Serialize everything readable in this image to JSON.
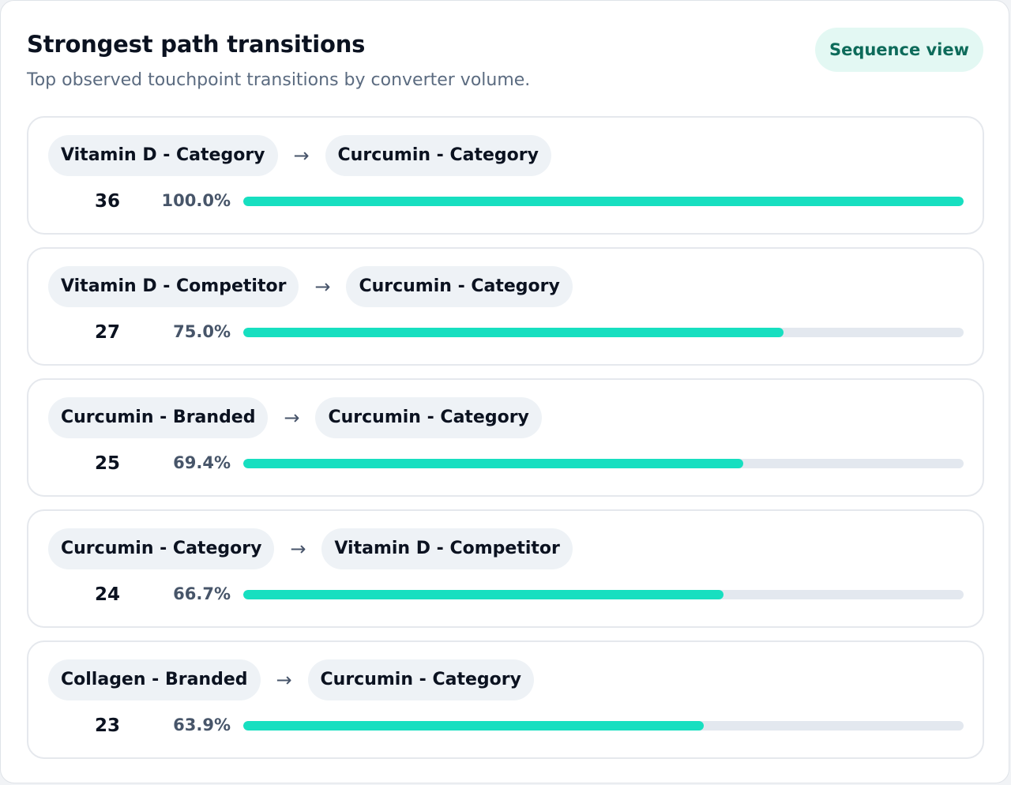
{
  "header": {
    "title": "Strongest path transitions",
    "subtitle": "Top observed touchpoint transitions by converter volume.",
    "sequence_view_label": "Sequence view"
  },
  "arrow_glyph": "→",
  "colors": {
    "accent": "#17dfc0",
    "track": "#e3e8ef",
    "chip_bg": "#eef2f6",
    "button_bg": "#e3f8f3",
    "button_text": "#0d6b5a"
  },
  "transitions": [
    {
      "from": "Vitamin D - Category",
      "to": "Curcumin - Category",
      "count": "36",
      "percent_label": "100.0%",
      "percent": 100.0
    },
    {
      "from": "Vitamin D - Competitor",
      "to": "Curcumin - Category",
      "count": "27",
      "percent_label": "75.0%",
      "percent": 75.0
    },
    {
      "from": "Curcumin - Branded",
      "to": "Curcumin - Category",
      "count": "25",
      "percent_label": "69.4%",
      "percent": 69.4
    },
    {
      "from": "Curcumin - Category",
      "to": "Vitamin D - Competitor",
      "count": "24",
      "percent_label": "66.7%",
      "percent": 66.7
    },
    {
      "from": "Collagen - Branded",
      "to": "Curcumin - Category",
      "count": "23",
      "percent_label": "63.9%",
      "percent": 63.9
    }
  ]
}
